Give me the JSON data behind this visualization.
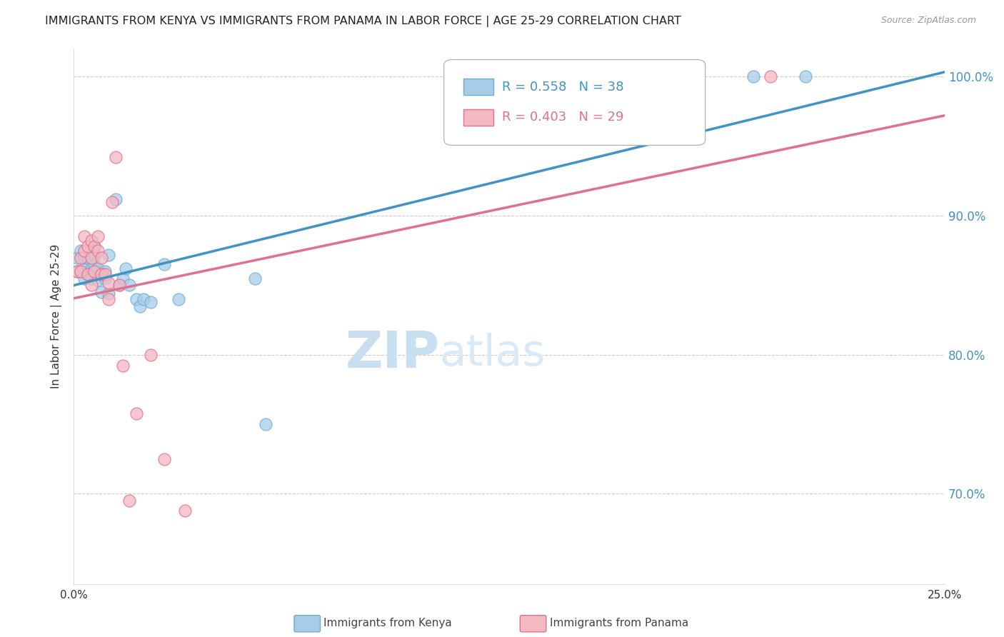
{
  "title": "IMMIGRANTS FROM KENYA VS IMMIGRANTS FROM PANAMA IN LABOR FORCE | AGE 25-29 CORRELATION CHART",
  "source": "Source: ZipAtlas.com",
  "ylabel": "In Labor Force | Age 25-29",
  "xlim": [
    0.0,
    0.25
  ],
  "ylim": [
    0.635,
    1.02
  ],
  "xticks": [
    0.0,
    0.05,
    0.1,
    0.15,
    0.2,
    0.25
  ],
  "xtick_labels": [
    "0.0%",
    "",
    "",
    "",
    "",
    "25.0%"
  ],
  "ytick_labels_right": [
    "70.0%",
    "80.0%",
    "90.0%",
    "100.0%"
  ],
  "yticks_right": [
    0.7,
    0.8,
    0.9,
    1.0
  ],
  "watermark_zip": "ZIP",
  "watermark_atlas": "atlas",
  "kenya_color": "#a8cce8",
  "kenya_edge": "#6aaed6",
  "panama_color": "#f4b8c1",
  "panama_edge": "#e07090",
  "line_kenya_color": "#4292c6",
  "line_panama_color": "#e07090",
  "legend_kenya_R": "0.558",
  "legend_kenya_N": "38",
  "legend_panama_R": "0.403",
  "legend_panama_N": "29",
  "legend_kenya_label": "Immigrants from Kenya",
  "legend_panama_label": "Immigrants from Panama",
  "kenya_x": [
    0.001,
    0.001,
    0.002,
    0.002,
    0.003,
    0.003,
    0.003,
    0.004,
    0.004,
    0.005,
    0.005,
    0.005,
    0.006,
    0.006,
    0.006,
    0.007,
    0.007,
    0.008,
    0.008,
    0.009,
    0.009,
    0.01,
    0.01,
    0.012,
    0.013,
    0.014,
    0.015,
    0.016,
    0.018,
    0.019,
    0.02,
    0.022,
    0.026,
    0.03,
    0.052,
    0.055,
    0.195,
    0.21
  ],
  "kenya_y": [
    0.86,
    0.87,
    0.86,
    0.875,
    0.855,
    0.862,
    0.87,
    0.858,
    0.87,
    0.86,
    0.862,
    0.855,
    0.872,
    0.865,
    0.878,
    0.854,
    0.862,
    0.858,
    0.845,
    0.86,
    0.855,
    0.872,
    0.844,
    0.912,
    0.85,
    0.855,
    0.862,
    0.85,
    0.84,
    0.835,
    0.84,
    0.838,
    0.865,
    0.84,
    0.855,
    0.75,
    1.0,
    1.0
  ],
  "panama_x": [
    0.001,
    0.002,
    0.002,
    0.003,
    0.003,
    0.004,
    0.004,
    0.005,
    0.005,
    0.005,
    0.006,
    0.006,
    0.007,
    0.007,
    0.008,
    0.008,
    0.009,
    0.01,
    0.01,
    0.011,
    0.012,
    0.013,
    0.014,
    0.016,
    0.018,
    0.022,
    0.026,
    0.032,
    0.2
  ],
  "panama_y": [
    0.86,
    0.86,
    0.87,
    0.875,
    0.885,
    0.858,
    0.878,
    0.85,
    0.87,
    0.882,
    0.86,
    0.878,
    0.875,
    0.885,
    0.858,
    0.87,
    0.858,
    0.852,
    0.84,
    0.91,
    0.942,
    0.85,
    0.792,
    0.695,
    0.758,
    0.8,
    0.725,
    0.688,
    1.0
  ],
  "grid_color": "#cccccc",
  "title_fontsize": 11.5,
  "axis_label_fontsize": 11,
  "tick_fontsize": 11,
  "legend_fontsize": 13,
  "watermark_fontsize": 52,
  "watermark_zip_color": "#c8dff0",
  "watermark_atlas_color": "#d8eaf8",
  "right_tick_color": "#4292c6",
  "background_color": "#ffffff",
  "legend_r_color_kenya": "#4292c6",
  "legend_n_color_kenya": "#e05000",
  "legend_r_color_panama": "#e07090",
  "legend_n_color_panama": "#e05000"
}
